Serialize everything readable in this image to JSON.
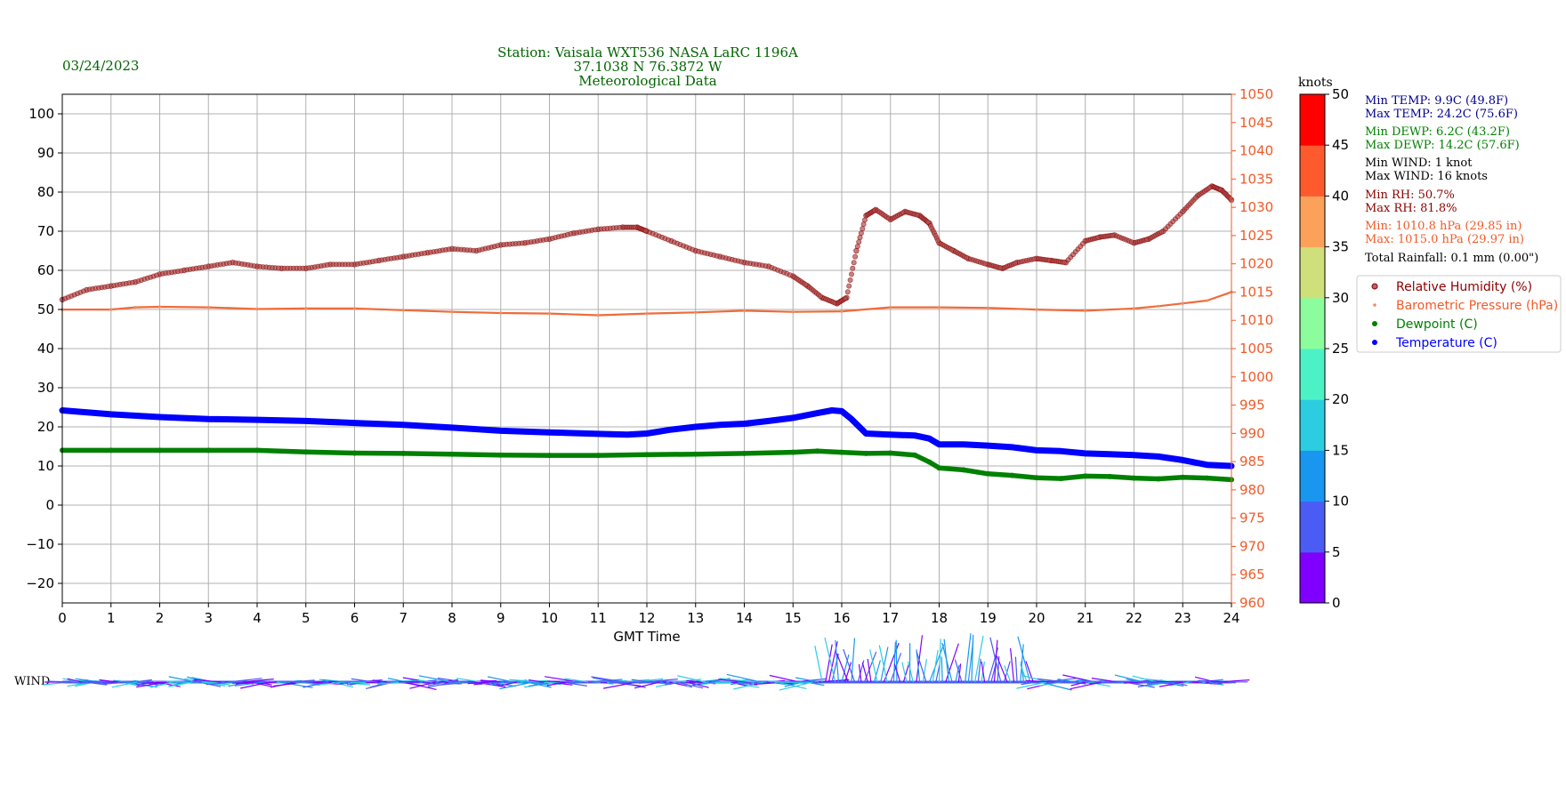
{
  "header": {
    "date": "03/24/2023",
    "station_line1": "Station:  Vaisala WXT536  NASA LaRC 1196A",
    "station_line2": "37.1038 N 76.3872 W",
    "station_line3": "Meteorological Data"
  },
  "colors": {
    "header_green": "#006400",
    "pressure_orange": "#f05a28",
    "rh_darkred": "#8b0000",
    "dewpoint_green": "#008000",
    "temperature_blue": "#0000ff",
    "stats_navy": "#00008b",
    "grid": "#b0b0b0"
  },
  "stats": {
    "min_temp": "Min TEMP: 9.9C (49.8F)",
    "max_temp": "Max TEMP: 24.2C (75.6F)",
    "min_dewp": "Min DEWP: 6.2C (43.2F)",
    "max_dewp": "Max DEWP: 14.2C (57.6F)",
    "min_wind": "Min WIND: 1 knot",
    "max_wind": "Max WIND: 16 knots",
    "min_rh": "Min RH: 50.7%",
    "max_rh": "Max RH: 81.8%",
    "min_pres": "Min: 1010.8 hPa (29.85 in)",
    "max_pres": "Max: 1015.0 hPa (29.97 in)",
    "rainfall": "Total Rainfall: 0.1 mm (0.00\")"
  },
  "colorbar": {
    "title": "knots",
    "ticks": [
      "0",
      "5",
      "10",
      "15",
      "20",
      "25",
      "30",
      "35",
      "40",
      "45",
      "50"
    ],
    "colors": [
      "#7f00ff",
      "#4b5cf5",
      "#1996f0",
      "#2ccde0",
      "#4cf2c5",
      "#8cfd9c",
      "#cfe07a",
      "#fca15a",
      "#ff5a2e",
      "#ff0000"
    ]
  },
  "wind_label": "WIND",
  "chart_data": {
    "type": "scatter",
    "xlabel": "GMT Time",
    "xlim": [
      0,
      24
    ],
    "x_ticks": [
      "0",
      "1",
      "2",
      "3",
      "4",
      "5",
      "6",
      "7",
      "8",
      "9",
      "10",
      "11",
      "12",
      "13",
      "14",
      "15",
      "16",
      "17",
      "18",
      "19",
      "20",
      "21",
      "22",
      "23",
      "24"
    ],
    "left_axis": {
      "ylim": [
        -25,
        105
      ],
      "ticks": [
        "100",
        "90",
        "80",
        "70",
        "60",
        "50",
        "40",
        "30",
        "20",
        "10",
        "0",
        "−10",
        "−20"
      ],
      "tick_values": [
        100,
        90,
        80,
        70,
        60,
        50,
        40,
        30,
        20,
        10,
        0,
        -10,
        -20
      ]
    },
    "right_axis": {
      "ylim": [
        960,
        1050
      ],
      "ticks": [
        "1050",
        "1045",
        "1040",
        "1035",
        "1030",
        "1025",
        "1020",
        "1015",
        "1010",
        "1005",
        "1000",
        "995",
        "990",
        "985",
        "980",
        "975",
        "970",
        "965",
        "960"
      ],
      "tick_values": [
        1050,
        1045,
        1040,
        1035,
        1030,
        1025,
        1020,
        1015,
        1010,
        1005,
        1000,
        995,
        990,
        985,
        980,
        975,
        970,
        965,
        960
      ]
    },
    "legend_position": "right",
    "grid": true,
    "series": [
      {
        "name": "Relative Humidity (%)",
        "axis": "left",
        "x": [
          0,
          0.5,
          1,
          1.5,
          2,
          2.5,
          3,
          3.5,
          4,
          4.5,
          5,
          5.5,
          6,
          6.5,
          7,
          7.5,
          8,
          8.5,
          9,
          9.5,
          10,
          10.5,
          11,
          11.5,
          11.8,
          12,
          12.5,
          13,
          13.5,
          14,
          14.5,
          15,
          15.3,
          15.6,
          15.9,
          16.1,
          16.3,
          16.5,
          16.7,
          17,
          17.3,
          17.6,
          17.8,
          18,
          18.3,
          18.6,
          19,
          19.3,
          19.6,
          20,
          20.3,
          20.6,
          21,
          21.3,
          21.6,
          22,
          22.3,
          22.6,
          23,
          23.3,
          23.6,
          23.8,
          24
        ],
        "values": [
          52.5,
          55,
          56,
          57,
          59,
          60,
          61,
          62,
          61,
          60.5,
          60.5,
          61.5,
          61.5,
          62.5,
          63.5,
          64.5,
          65.5,
          65,
          66.5,
          67,
          68,
          69.5,
          70.5,
          71,
          71,
          70,
          67.5,
          65,
          63.5,
          62,
          61,
          58.5,
          56,
          53,
          51.5,
          53,
          65,
          74,
          75.5,
          73,
          75,
          74,
          72,
          67,
          65,
          63,
          61.5,
          60.5,
          62,
          63,
          62.5,
          62,
          67.5,
          68.5,
          69,
          67,
          68,
          70,
          75,
          79,
          81.5,
          80.5,
          78
        ]
      },
      {
        "name": "Barometric Pressure (hPa)",
        "axis": "right",
        "x": [
          0,
          1,
          1.5,
          2,
          3,
          4,
          5,
          6,
          7,
          8,
          9,
          10,
          11,
          12,
          13,
          14,
          15,
          16,
          17,
          18,
          19,
          20,
          21,
          22,
          22.5,
          23,
          23.5,
          24
        ],
        "values": [
          1011.9,
          1011.9,
          1012.3,
          1012.4,
          1012.3,
          1012,
          1012.1,
          1012.1,
          1011.8,
          1011.5,
          1011.3,
          1011.2,
          1010.9,
          1011.2,
          1011.4,
          1011.7,
          1011.5,
          1011.6,
          1012.3,
          1012.3,
          1012.2,
          1011.9,
          1011.7,
          1012.1,
          1012.5,
          1013,
          1013.5,
          1015
        ]
      },
      {
        "name": "Dewpoint (C)",
        "axis": "left",
        "x": [
          0,
          1,
          2,
          3,
          4,
          5,
          6,
          7,
          8,
          9,
          10,
          11,
          12,
          13,
          14,
          15,
          15.5,
          16,
          16.5,
          17,
          17.5,
          17.8,
          18,
          18.5,
          19,
          19.5,
          20,
          20.5,
          21,
          21.5,
          22,
          22.5,
          23,
          23.5,
          24
        ],
        "values": [
          14,
          14,
          14,
          14,
          14,
          13.6,
          13.3,
          13.2,
          13,
          12.8,
          12.7,
          12.7,
          12.9,
          13,
          13.2,
          13.5,
          13.8,
          13.5,
          13.2,
          13.3,
          12.8,
          11,
          9.5,
          9,
          8,
          7.6,
          7,
          6.8,
          7.4,
          7.3,
          6.9,
          6.7,
          7.1,
          6.9,
          6.5
        ]
      },
      {
        "name": "Temperature (C)",
        "axis": "left",
        "x": [
          0,
          1,
          2,
          3,
          4,
          5,
          6,
          7,
          8,
          9,
          10,
          11,
          11.6,
          12,
          12.5,
          13,
          13.5,
          14,
          14.5,
          15,
          15.5,
          15.8,
          16,
          16.2,
          16.5,
          17,
          17.5,
          17.8,
          18,
          18.5,
          19,
          19.5,
          20,
          20.5,
          21,
          21.5,
          22,
          22.5,
          23,
          23.5,
          24
        ],
        "values": [
          24.2,
          23.2,
          22.5,
          22,
          21.8,
          21.5,
          21,
          20.5,
          19.8,
          19,
          18.6,
          18.2,
          18,
          18.3,
          19.3,
          20,
          20.5,
          20.8,
          21.5,
          22.3,
          23.5,
          24.2,
          24,
          22,
          18.3,
          18,
          17.8,
          17,
          15.5,
          15.5,
          15.2,
          14.8,
          14,
          13.8,
          13.2,
          13,
          12.8,
          12.4,
          11.5,
          10.3,
          10
        ]
      }
    ]
  }
}
